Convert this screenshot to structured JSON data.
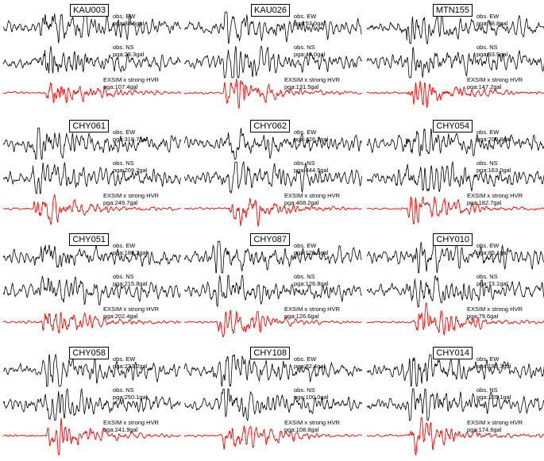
{
  "chart_data": [
    {
      "type": "line",
      "station": "KAU003",
      "traces": [
        {
          "name": "obs. EW",
          "pga": "pga:38.6gal",
          "color": "#000000"
        },
        {
          "name": "obs. NS",
          "pga": "pga:28.3gal",
          "color": "#000000"
        },
        {
          "name": "EXSIM x strong HVR",
          "pga": "pga:107.4gal",
          "color": "#ff0000"
        }
      ]
    },
    {
      "type": "line",
      "station": "KAU026",
      "traces": [
        {
          "name": "obs. EW",
          "pga": "pga:53.0gal",
          "color": "#000000"
        },
        {
          "name": "obs. NS",
          "pga": "pga:40.0gal",
          "color": "#000000"
        },
        {
          "name": "EXSIM x strong HVR",
          "pga": "pga:131.5gal",
          "color": "#ff0000"
        }
      ]
    },
    {
      "type": "line",
      "station": "MTN155",
      "traces": [
        {
          "name": "obs. EW",
          "pga": "pga:98.8gal",
          "color": "#000000"
        },
        {
          "name": "obs. NS",
          "pga": "pga:93.9gal",
          "color": "#000000"
        },
        {
          "name": "EXSIM x strong HVR",
          "pga": "pga:147.2gal",
          "color": "#ff0000"
        }
      ]
    },
    {
      "type": "line",
      "station": "CHY061",
      "traces": [
        {
          "name": "obs. EW",
          "pga": "pga:316.7gal",
          "color": "#000000"
        },
        {
          "name": "obs. NS",
          "pga": "pga:209.2gal",
          "color": "#000000"
        },
        {
          "name": "EXSIM x strong HVR",
          "pga": "pga:249.7gal",
          "color": "#ff0000"
        }
      ]
    },
    {
      "type": "line",
      "station": "CHY062",
      "traces": [
        {
          "name": "obs. EW",
          "pga": "pga:426.2gal",
          "color": "#000000"
        },
        {
          "name": "obs. NS",
          "pga": "pga:444.5gal",
          "color": "#000000"
        },
        {
          "name": "EXSIM x strong HVR",
          "pga": "pga:468.2gal",
          "color": "#ff0000"
        }
      ]
    },
    {
      "type": "line",
      "station": "CHY054",
      "traces": [
        {
          "name": "obs. EW",
          "pga": "pga:200.8gal",
          "color": "#000000"
        },
        {
          "name": "obs. NS",
          "pga": "pga:163.0gal",
          "color": "#000000"
        },
        {
          "name": "EXSIM x strong HVR",
          "pga": "pga:182.7gal",
          "color": "#ff0000"
        }
      ]
    },
    {
      "type": "line",
      "station": "CHY051",
      "traces": [
        {
          "name": "obs. EW",
          "pga": "pga:186.2gal",
          "color": "#000000"
        },
        {
          "name": "obs. NS",
          "pga": "pga:215.8gal",
          "color": "#000000"
        },
        {
          "name": "EXSIM x strong HVR",
          "pga": "pga:202.4gal",
          "color": "#ff0000"
        }
      ]
    },
    {
      "type": "line",
      "station": "CHY087",
      "traces": [
        {
          "name": "obs. EW",
          "pga": "pga:126.5gal",
          "color": "#000000"
        },
        {
          "name": "obs. NS",
          "pga": "pga:126.8gal",
          "color": "#000000"
        },
        {
          "name": "EXSIM x strong HVR",
          "pga": "pga:126.6gal",
          "color": "#ff0000"
        }
      ]
    },
    {
      "type": "line",
      "station": "CHY010",
      "traces": [
        {
          "name": "obs. EW",
          "pga": "pga:85.1gal",
          "color": "#000000"
        },
        {
          "name": "obs. NS",
          "pga": "pga:73.1gal",
          "color": "#000000"
        },
        {
          "name": "EXSIM x strong HVR",
          "pga": "pga:79.6gal",
          "color": "#ff0000"
        }
      ]
    },
    {
      "type": "line",
      "station": "CHY058",
      "traces": [
        {
          "name": "obs. EW",
          "pga": "pga:233.2gal",
          "color": "#000000"
        },
        {
          "name": "obs. NS",
          "pga": "pga:250.1gal",
          "color": "#000000"
        },
        {
          "name": "EXSIM x strong HVR",
          "pga": "pga:241.9gal",
          "color": "#ff0000"
        }
      ]
    },
    {
      "type": "line",
      "station": "CHY108",
      "traces": [
        {
          "name": "obs. EW",
          "pga": "pga:82.4gal",
          "color": "#000000"
        },
        {
          "name": "obs. NS",
          "pga": "pga:100.0gal",
          "color": "#000000"
        },
        {
          "name": "EXSIM x strong HVR",
          "pga": "pga:108.8gal",
          "color": "#ff0000"
        }
      ]
    },
    {
      "type": "line",
      "station": "CHY014",
      "traces": [
        {
          "name": "obs. EW",
          "pga": "pga:185.3gal",
          "color": "#000000"
        },
        {
          "name": "obs. NS",
          "pga": "pga:165.1gal",
          "color": "#000000"
        },
        {
          "name": "EXSIM x strong HVR",
          "pga": "pga:174.6gal",
          "color": "#ff0000"
        }
      ]
    }
  ]
}
